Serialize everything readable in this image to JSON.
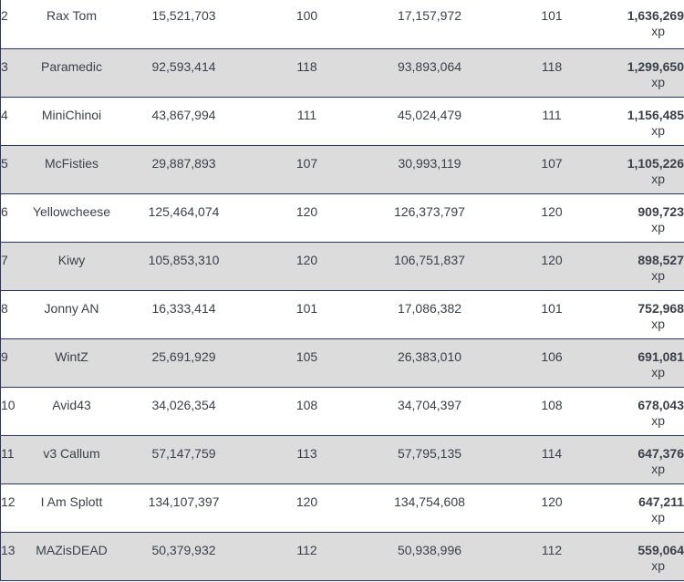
{
  "leaderboard": {
    "gain_unit": "xp",
    "rows": [
      {
        "rank": "2",
        "name": "Rax Tom",
        "start_xp": "15,521,703",
        "start_level": "100",
        "end_xp": "17,157,972",
        "end_level": "101",
        "gain": "1,636,269"
      },
      {
        "rank": "3",
        "name": "Paramedic",
        "start_xp": "92,593,414",
        "start_level": "118",
        "end_xp": "93,893,064",
        "end_level": "118",
        "gain": "1,299,650"
      },
      {
        "rank": "4",
        "name": "MiniChinoi",
        "start_xp": "43,867,994",
        "start_level": "111",
        "end_xp": "45,024,479",
        "end_level": "111",
        "gain": "1,156,485"
      },
      {
        "rank": "5",
        "name": "McFisties",
        "start_xp": "29,887,893",
        "start_level": "107",
        "end_xp": "30,993,119",
        "end_level": "107",
        "gain": "1,105,226"
      },
      {
        "rank": "6",
        "name": "Yellowcheese",
        "start_xp": "125,464,074",
        "start_level": "120",
        "end_xp": "126,373,797",
        "end_level": "120",
        "gain": "909,723"
      },
      {
        "rank": "7",
        "name": "Kiwy",
        "start_xp": "105,853,310",
        "start_level": "120",
        "end_xp": "106,751,837",
        "end_level": "120",
        "gain": "898,527"
      },
      {
        "rank": "8",
        "name": "Jonny AN",
        "start_xp": "16,333,414",
        "start_level": "101",
        "end_xp": "17,086,382",
        "end_level": "101",
        "gain": "752,968"
      },
      {
        "rank": "9",
        "name": "WintZ",
        "start_xp": "25,691,929",
        "start_level": "105",
        "end_xp": "26,383,010",
        "end_level": "106",
        "gain": "691,081"
      },
      {
        "rank": "10",
        "name": "Avid43",
        "start_xp": "34,026,354",
        "start_level": "108",
        "end_xp": "34,704,397",
        "end_level": "108",
        "gain": "678,043"
      },
      {
        "rank": "11",
        "name": "v3 Callum",
        "start_xp": "57,147,759",
        "start_level": "113",
        "end_xp": "57,795,135",
        "end_level": "114",
        "gain": "647,376"
      },
      {
        "rank": "12",
        "name": "I Am Splott",
        "start_xp": "134,107,397",
        "start_level": "120",
        "end_xp": "134,754,608",
        "end_level": "120",
        "gain": "647,211"
      },
      {
        "rank": "13",
        "name": "MAZisDEAD",
        "start_xp": "50,379,932",
        "start_level": "112",
        "end_xp": "50,938,996",
        "end_level": "112",
        "gain": "559,064"
      }
    ]
  }
}
